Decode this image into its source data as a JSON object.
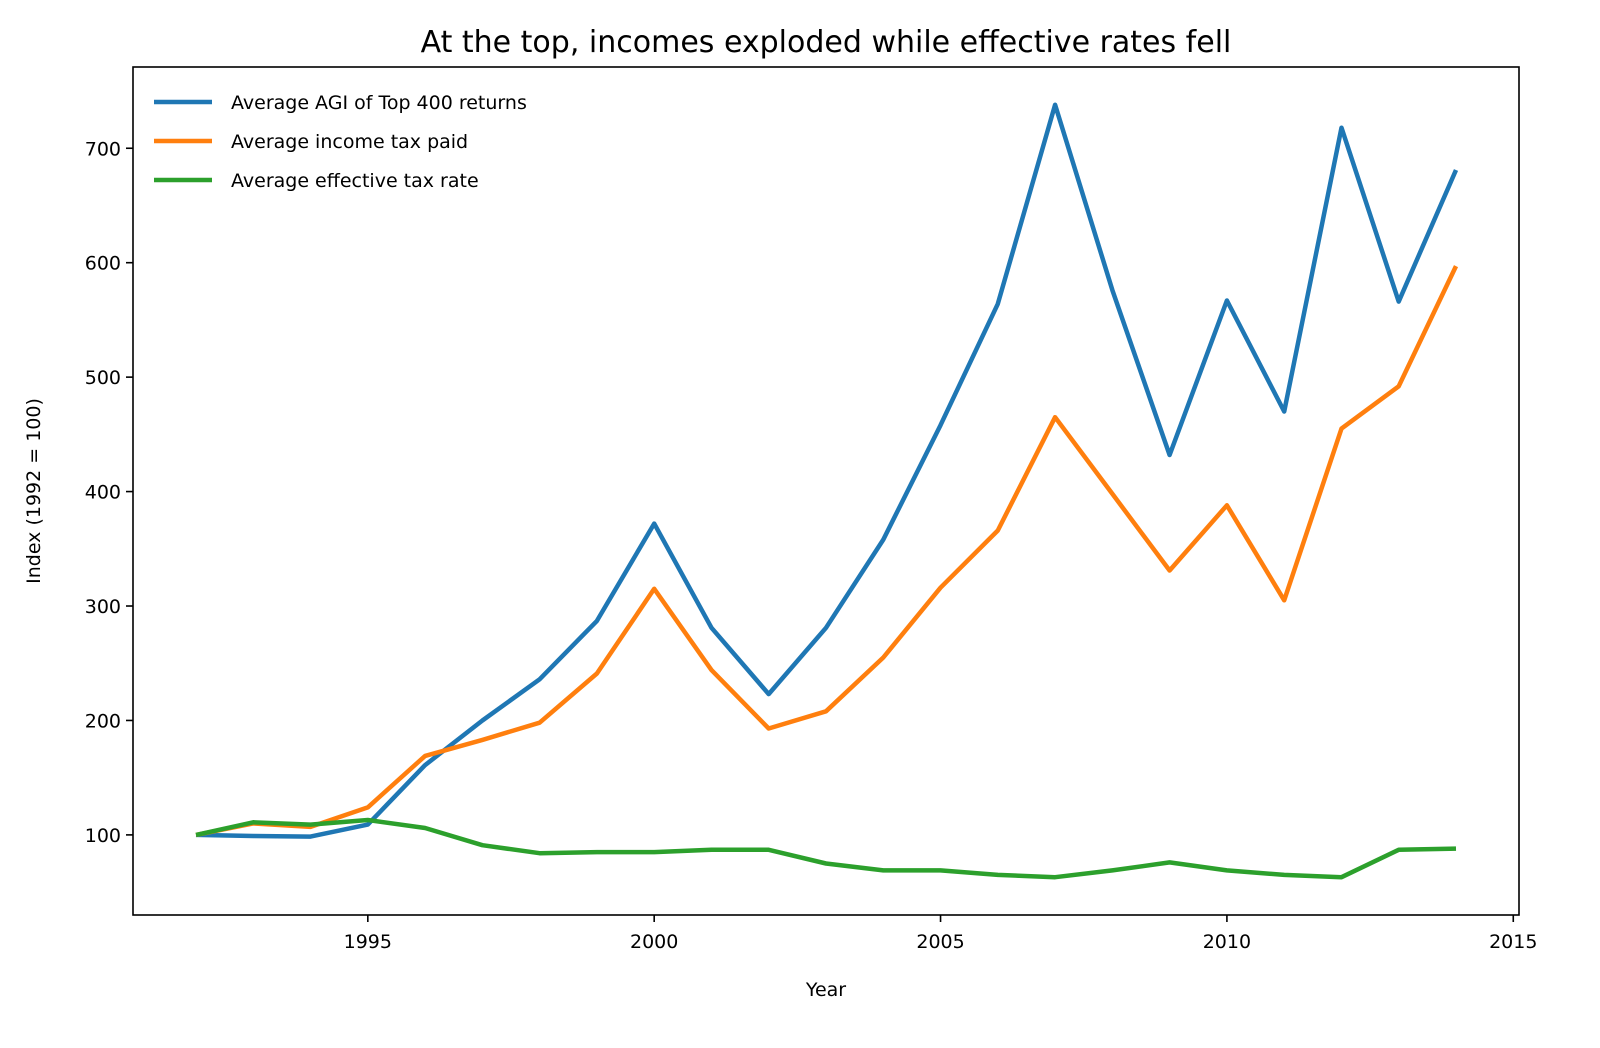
{
  "chart_data": {
    "type": "line",
    "title": "At the top, incomes exploded while effective rates fell",
    "xlabel": "Year",
    "ylabel": "Index (1992 = 100)",
    "xlim": [
      1990.9,
      2015.1
    ],
    "ylim": [
      30,
      771
    ],
    "xticks": [
      1995,
      2000,
      2005,
      2010,
      2015
    ],
    "yticks": [
      100,
      200,
      300,
      400,
      500,
      600,
      700
    ],
    "grid": false,
    "legend_position": "top-left",
    "x": [
      1992,
      1993,
      1994,
      1995,
      1996,
      1997,
      1998,
      1999,
      2000,
      2001,
      2002,
      2003,
      2004,
      2005,
      2006,
      2007,
      2008,
      2009,
      2010,
      2011,
      2012,
      2013,
      2014
    ],
    "series": [
      {
        "name": "Average AGI of Top 400 returns",
        "color": "#1f77b4",
        "values": [
          100,
          99,
          98.5,
          109,
          161,
          200,
          236,
          287,
          372,
          281,
          223,
          281,
          358,
          458,
          564,
          738,
          576,
          432,
          567,
          470,
          718,
          566,
          681
        ]
      },
      {
        "name": "Average income tax paid",
        "color": "#ff7f0e",
        "values": [
          100,
          110,
          107,
          124,
          169,
          183,
          198,
          241,
          315,
          244,
          193,
          208,
          255,
          316,
          366,
          465,
          398,
          331,
          388,
          305,
          455,
          492,
          597
        ]
      },
      {
        "name": "Average effective tax rate",
        "color": "#2ca02c",
        "values": [
          100,
          111,
          109,
          113,
          106,
          91,
          84,
          85,
          85,
          87,
          87,
          75,
          69,
          69,
          65,
          63,
          69,
          76,
          69,
          65,
          63,
          87,
          88
        ]
      }
    ]
  }
}
